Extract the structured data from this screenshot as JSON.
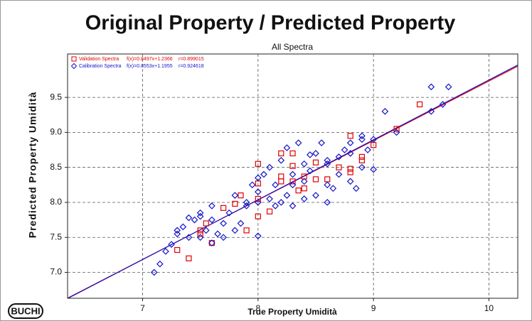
{
  "chart_data": {
    "type": "scatter",
    "title": "Original Property / Predicted Property",
    "subtitle": "All Spectra",
    "x_label": "True Property Umidità",
    "y_label": "Predicted Property Umidità",
    "logo": "BUCHI",
    "xlim": [
      6.35,
      10.25
    ],
    "ylim": [
      6.63,
      10.12
    ],
    "xticks": [
      7,
      8,
      9,
      10
    ],
    "yticks": [
      {
        "value": 7,
        "label": "7.0"
      },
      7.5,
      {
        "value": 8,
        "label": "8.0"
      },
      8.5,
      {
        "value": 9,
        "label": "9.0"
      },
      9.5
    ],
    "grid": true,
    "legend": "top-left",
    "series": [
      {
        "name": "Validation Spectra",
        "equation": "f(x)=0.8497x+1.2366",
        "r_label": "r=0.899015",
        "slope": 0.8497,
        "intercept": 1.2366,
        "marker": "square",
        "color": "#e00000",
        "x": [
          7.3,
          7.4,
          7.5,
          7.5,
          7.55,
          7.6,
          7.7,
          7.8,
          7.85,
          7.9,
          8.0,
          8.0,
          8.0,
          8.1,
          8.2,
          8.2,
          8.2,
          8.3,
          8.3,
          8.35,
          8.4,
          8.4,
          8.5,
          8.5,
          8.6,
          8.7,
          8.8,
          8.8,
          8.8,
          8.9,
          8.9,
          9.0,
          9.2,
          9.4,
          8.3,
          8.0
        ],
        "values": [
          7.32,
          7.2,
          7.55,
          7.6,
          7.7,
          7.42,
          7.92,
          7.98,
          8.1,
          7.6,
          7.8,
          8.27,
          8.55,
          7.87,
          8.3,
          8.37,
          8.7,
          8.7,
          8.52,
          8.17,
          8.2,
          8.37,
          8.57,
          8.33,
          8.33,
          8.5,
          8.95,
          8.48,
          8.43,
          8.6,
          8.65,
          8.82,
          9.05,
          9.4,
          8.3,
          8.05
        ]
      },
      {
        "name": "Calibration Spectra",
        "equation": "f(x)=0.8553x+1.1955",
        "r_label": "r=0.924618",
        "slope": 0.8553,
        "intercept": 1.1955,
        "marker": "diamond",
        "color": "#1414c8",
        "x": [
          7.1,
          7.15,
          7.2,
          7.25,
          7.3,
          7.3,
          7.35,
          7.4,
          7.4,
          7.45,
          7.5,
          7.5,
          7.5,
          7.55,
          7.6,
          7.6,
          7.6,
          7.65,
          7.7,
          7.7,
          7.75,
          7.8,
          7.8,
          7.85,
          7.9,
          7.9,
          7.95,
          8.0,
          8.0,
          8.0,
          8.0,
          8.05,
          8.1,
          8.1,
          8.15,
          8.15,
          8.2,
          8.2,
          8.25,
          8.25,
          8.3,
          8.3,
          8.3,
          8.35,
          8.4,
          8.4,
          8.4,
          8.45,
          8.5,
          8.5,
          8.55,
          8.6,
          8.6,
          8.6,
          8.65,
          8.7,
          8.7,
          8.75,
          8.8,
          8.8,
          8.85,
          8.9,
          8.9,
          8.9,
          8.95,
          9.0,
          9.0,
          9.1,
          9.2,
          9.5,
          9.5,
          9.6,
          9.65,
          8.8,
          8.6,
          8.45
        ],
        "values": [
          7.0,
          7.12,
          7.3,
          7.4,
          7.55,
          7.6,
          7.65,
          7.5,
          7.78,
          7.75,
          7.5,
          7.8,
          7.85,
          7.6,
          7.42,
          7.75,
          7.95,
          7.55,
          7.7,
          7.5,
          7.85,
          7.6,
          8.1,
          7.7,
          7.95,
          8.0,
          8.25,
          7.52,
          8.0,
          8.15,
          8.35,
          8.4,
          8.05,
          8.5,
          7.95,
          8.25,
          8.0,
          8.6,
          8.78,
          8.1,
          7.95,
          8.25,
          8.4,
          8.85,
          8.05,
          8.3,
          8.55,
          8.45,
          8.1,
          8.7,
          8.85,
          8.0,
          8.25,
          8.6,
          8.2,
          8.4,
          8.65,
          8.75,
          8.3,
          8.7,
          8.2,
          8.5,
          8.95,
          8.9,
          8.75,
          8.47,
          8.9,
          9.3,
          9.0,
          9.3,
          9.65,
          9.4,
          9.65,
          8.85,
          8.55,
          8.68
        ]
      }
    ]
  }
}
